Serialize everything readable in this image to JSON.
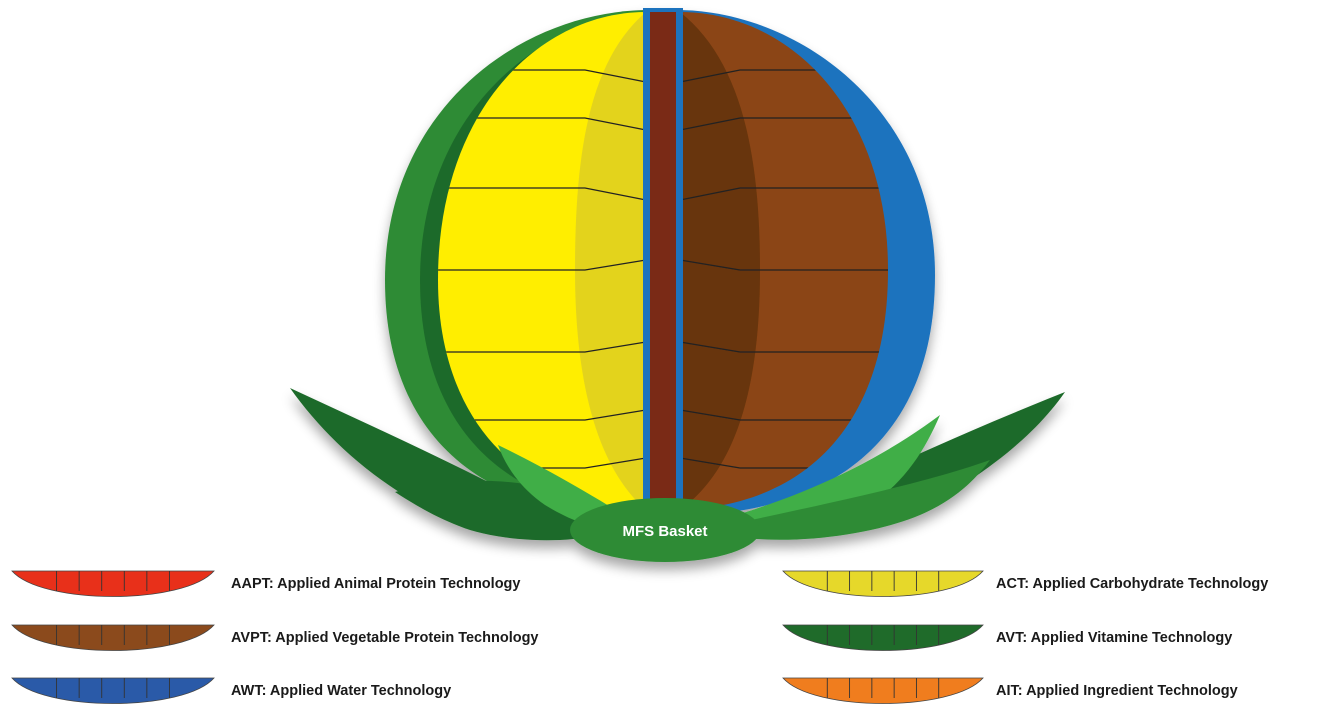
{
  "basket": {
    "label": "MFS Basket",
    "colors": {
      "leaf_dark": "#1f6b2a",
      "leaf_mid": "#2e8b36",
      "leaf_light": "#3fae46",
      "yellow": "#ffee00",
      "yellow_shade": "#d9c92a",
      "brown": "#8b4513",
      "brown_dark": "#5a2e0e",
      "blue": "#1e73be",
      "stem": "#7a2a16"
    }
  },
  "legend": [
    {
      "code": "AAPT",
      "text": "AAPT: Applied Animal Protein Technology",
      "color": "#e8301a",
      "column": "left"
    },
    {
      "code": "AVPT",
      "text": "AVPT: Applied Vegetable Protein Technology",
      "color": "#8b4a1c",
      "column": "left"
    },
    {
      "code": "AWT",
      "text": "AWT: Applied Water Technology",
      "color": "#2a5aa8",
      "column": "left"
    },
    {
      "code": "ACT",
      "text": "ACT: Applied Carbohydrate Technology",
      "color": "#e6d82a",
      "column": "right"
    },
    {
      "code": "AVT",
      "text": "AVT: Applied Vitamine Technology",
      "color": "#1f6b2a",
      "column": "right"
    },
    {
      "code": "AIT",
      "text": "AIT: Applied Ingredient Technology",
      "color": "#f07d1e",
      "column": "right"
    }
  ]
}
